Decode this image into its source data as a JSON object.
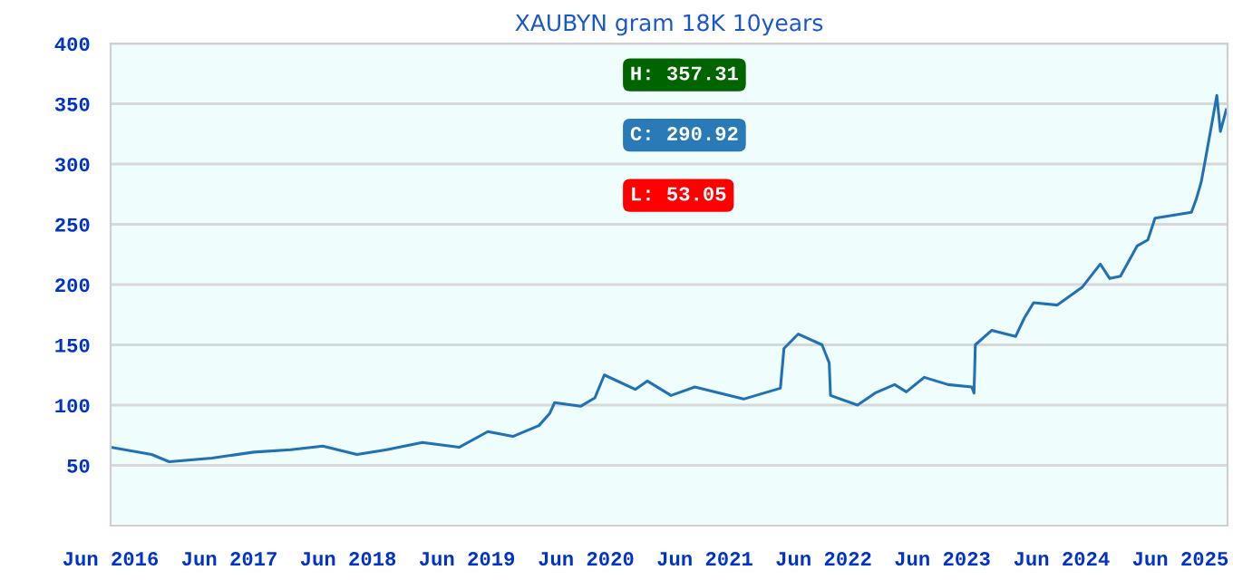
{
  "chart_data": {
    "type": "line",
    "title": "XAUBYN gram 18K 10years",
    "x": [
      "2016-06-01",
      "2016-10-05",
      "2016-11-28",
      "2017-04-08",
      "2017-08-15",
      "2017-12-06",
      "2018-03-15",
      "2018-06-28",
      "2018-09-27",
      "2019-01-15",
      "2019-05-08",
      "2019-08-04",
      "2019-10-20",
      "2020-01-08",
      "2020-02-10",
      "2020-02-25",
      "2020-05-15",
      "2020-06-28",
      "2020-07-27",
      "2020-10-30",
      "2020-12-06",
      "2021-02-17",
      "2021-05-01",
      "2021-09-28",
      "2022-01-19",
      "2022-01-30",
      "2022-03-15",
      "2022-05-27",
      "2022-06-18",
      "2022-06-22",
      "2022-09-13",
      "2022-11-06",
      "2023-01-05",
      "2023-02-10",
      "2023-04-06",
      "2023-06-18",
      "2023-08-30",
      "2023-09-06",
      "2023-09-10",
      "2023-10-30",
      "2024-01-12",
      "2024-02-07",
      "2024-03-07",
      "2024-05-19",
      "2024-08-04",
      "2024-09-28",
      "2024-10-27",
      "2024-11-29",
      "2025-01-19",
      "2025-02-21",
      "2025-03-15",
      "2025-07-05",
      "2025-07-20",
      "2025-08-04",
      "2025-08-19",
      "2025-09-10",
      "2025-09-21",
      "2025-10-02",
      "2025-10-20"
    ],
    "series": [
      {
        "color": "#2171b5",
        "values": [
          65,
          59,
          53,
          56,
          61,
          63,
          66,
          59,
          63,
          69,
          65,
          78,
          74,
          83,
          93,
          102,
          99,
          106,
          125,
          113,
          120,
          108,
          115,
          105,
          114,
          147,
          159,
          150,
          135,
          108,
          100,
          110,
          117,
          111,
          123,
          117,
          115,
          110,
          150,
          162,
          157,
          172,
          185,
          183,
          198,
          217,
          205,
          207,
          232,
          237,
          255,
          260,
          271,
          285,
          307,
          340,
          357,
          327,
          345
        ]
      }
    ],
    "xlim": [
      "2016-06-01",
      "2025-10-24"
    ],
    "xticks": [
      {
        "value": "2016-06-01",
        "label": "Jun 2016"
      },
      {
        "value": "2017-06-01",
        "label": "Jun 2017"
      },
      {
        "value": "2018-06-01",
        "label": "Jun 2018"
      },
      {
        "value": "2019-06-01",
        "label": "Jun 2019"
      },
      {
        "value": "2020-06-01",
        "label": "Jun 2020"
      },
      {
        "value": "2021-06-01",
        "label": "Jun 2021"
      },
      {
        "value": "2022-06-01",
        "label": "Jun 2022"
      },
      {
        "value": "2023-06-01",
        "label": "Jun 2023"
      },
      {
        "value": "2024-06-01",
        "label": "Jun 2024"
      },
      {
        "value": "2025-06-01",
        "label": "Jun 2025"
      }
    ],
    "ylim": [
      0,
      400
    ],
    "yticks": [
      50,
      100,
      150,
      200,
      250,
      300,
      350,
      400
    ],
    "grid": "y",
    "marker": "none",
    "line_style": "solid",
    "annotations": [
      "H: 357.31",
      "C: 290.92",
      "L: 53.05"
    ]
  }
}
